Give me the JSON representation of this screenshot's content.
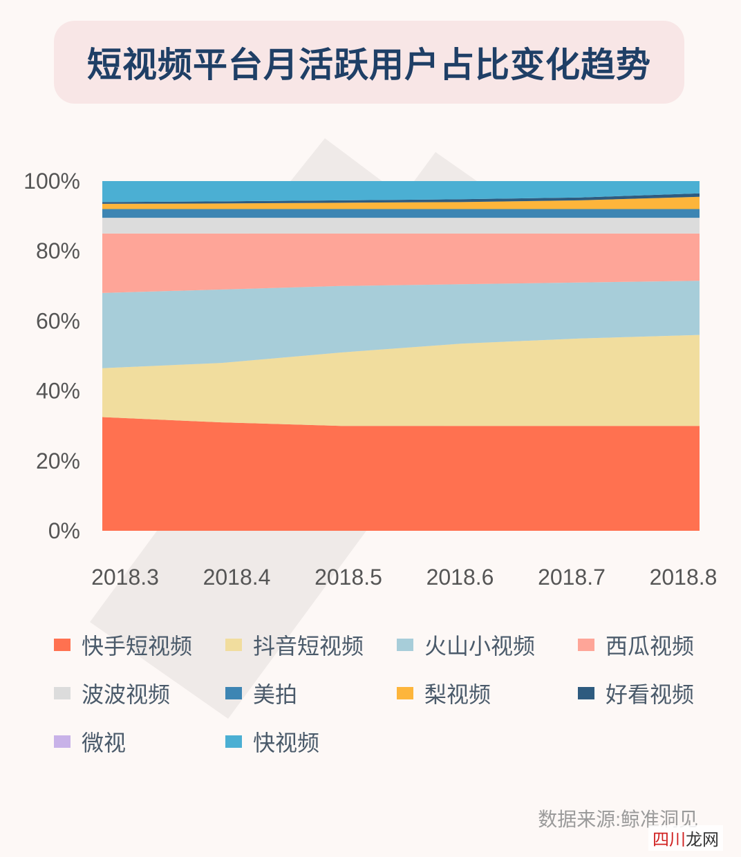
{
  "title": "短视频平台月活跃用户占比变化趋势",
  "source": "数据来源:鲸准洞见",
  "site_mark": {
    "part1": "四川",
    "part2": "龙网"
  },
  "chart_data": {
    "type": "area",
    "stacked": true,
    "title": "短视频平台月活跃用户占比变化趋势",
    "x": [
      "2018.3",
      "2018.4",
      "2018.5",
      "2018.6",
      "2018.7",
      "2018.8"
    ],
    "ylim": [
      0,
      100
    ],
    "yticks": [
      "0%",
      "20%",
      "40%",
      "60%",
      "80%",
      "100%"
    ],
    "ytick_values": [
      0,
      20,
      40,
      60,
      80,
      100
    ],
    "grid": false,
    "legend_position": "bottom",
    "series": [
      {
        "name": "快手短视频",
        "color": "#ff7150",
        "values": [
          32.5,
          31,
          30,
          30,
          30,
          30
        ]
      },
      {
        "name": "抖音短视频",
        "color": "#f1dd9e",
        "values": [
          14,
          17,
          21,
          23.5,
          25,
          26
        ]
      },
      {
        "name": "火山小视频",
        "color": "#a7cdd9",
        "values": [
          21.5,
          21,
          19,
          17,
          16,
          15.5
        ]
      },
      {
        "name": "西瓜视频",
        "color": "#fea598",
        "values": [
          17,
          16,
          15,
          14.5,
          14,
          13.5
        ]
      },
      {
        "name": "波波视频",
        "color": "#dcdcdc",
        "values": [
          4.5,
          4.5,
          4.5,
          4.5,
          4.5,
          4.5
        ]
      },
      {
        "name": "美拍",
        "color": "#3d85b3",
        "values": [
          2.5,
          2.5,
          2.5,
          2.5,
          2.5,
          2.5
        ]
      },
      {
        "name": "梨视频",
        "color": "#fdb53b",
        "values": [
          1.5,
          1.6,
          1.8,
          2,
          2.5,
          3.5
        ]
      },
      {
        "name": "好看视频",
        "color": "#2e5b7f",
        "values": [
          0.5,
          0.6,
          0.7,
          0.8,
          0.8,
          1
        ]
      },
      {
        "name": "微视",
        "color": "#c8b2e8",
        "values": [
          0,
          0,
          0,
          0,
          0,
          0
        ]
      },
      {
        "name": "快视频",
        "color": "#4bafd3",
        "values": [
          6,
          5.8,
          5.5,
          5.2,
          4.7,
          3.5
        ]
      }
    ]
  }
}
